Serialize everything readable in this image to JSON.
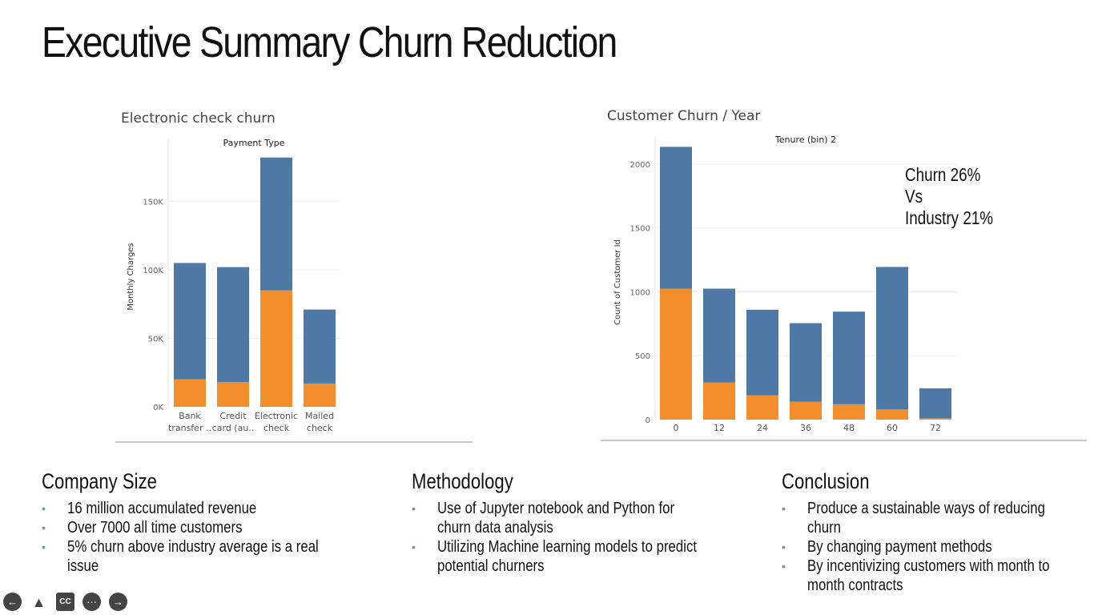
{
  "slide": {
    "title": "Executive Summary Churn Reduction"
  },
  "annotation": {
    "lines": [
      "Churn 26%",
      "Vs",
      "Industry 21%"
    ]
  },
  "sections": [
    {
      "heading": "Company Size",
      "bullets": [
        "16 million accumulated revenue",
        "Over 7000 all time customers",
        "5% churn above industry average is a real issue"
      ]
    },
    {
      "heading": "Methodology",
      "bullets": [
        "Use of Jupyter notebook and Python for churn data analysis",
        "Utilizing Machine learning models to predict potential churners"
      ]
    },
    {
      "heading": "Conclusion",
      "bullets": [
        "Produce a sustainable ways of reducing churn",
        "By changing payment methods",
        "By incentivizing customers with month to month contracts"
      ]
    }
  ],
  "nav": {
    "icons": [
      "back-arrow-icon",
      "pointer-icon",
      "captions-icon",
      "more-options-icon",
      "forward-arrow-icon"
    ],
    "cc_label": "CC",
    "more_label": "···"
  },
  "colors": {
    "retained": "#4e79a7",
    "churned": "#f28e2b"
  },
  "chart_data": [
    {
      "type": "bar",
      "stacked": true,
      "caption": "Electronic check churn",
      "title": "Payment Type",
      "xlabel": "",
      "ylabel": "Monthly Charges",
      "categories": [
        [
          "Bank",
          "transfer .."
        ],
        [
          "Credit",
          "card (au.."
        ],
        [
          "Electronic",
          "check"
        ],
        [
          "Mailed",
          "check"
        ]
      ],
      "series": [
        {
          "color": "#f28e2b",
          "values": [
            20000,
            18000,
            85000,
            17000
          ]
        },
        {
          "color": "#4e79a7",
          "values": [
            85000,
            84000,
            97000,
            54000
          ]
        }
      ],
      "ylim": [
        0,
        190000
      ],
      "yticks": [
        0,
        50000,
        100000,
        150000
      ],
      "ytick_labels": [
        "0K",
        "50K",
        "100K",
        "150K"
      ],
      "grid": true
    },
    {
      "type": "bar",
      "stacked": true,
      "caption": "Customer Churn / Year",
      "title": "Tenure (bin) 2",
      "xlabel": "",
      "ylabel": "Count of Customer Id",
      "categories": [
        [
          "0"
        ],
        [
          "12"
        ],
        [
          "24"
        ],
        [
          "36"
        ],
        [
          "48"
        ],
        [
          "60"
        ],
        [
          "72"
        ]
      ],
      "series": [
        {
          "color": "#f28e2b",
          "values": [
            1025,
            290,
            190,
            140,
            120,
            80,
            10
          ]
        },
        {
          "color": "#4e79a7",
          "values": [
            1110,
            735,
            670,
            615,
            725,
            1115,
            235
          ]
        }
      ],
      "ylim": [
        0,
        2150
      ],
      "yticks": [
        0,
        500,
        1000,
        1500,
        2000
      ],
      "ytick_labels": [
        "0",
        "500",
        "1000",
        "1500",
        "2000"
      ],
      "grid": true
    }
  ]
}
